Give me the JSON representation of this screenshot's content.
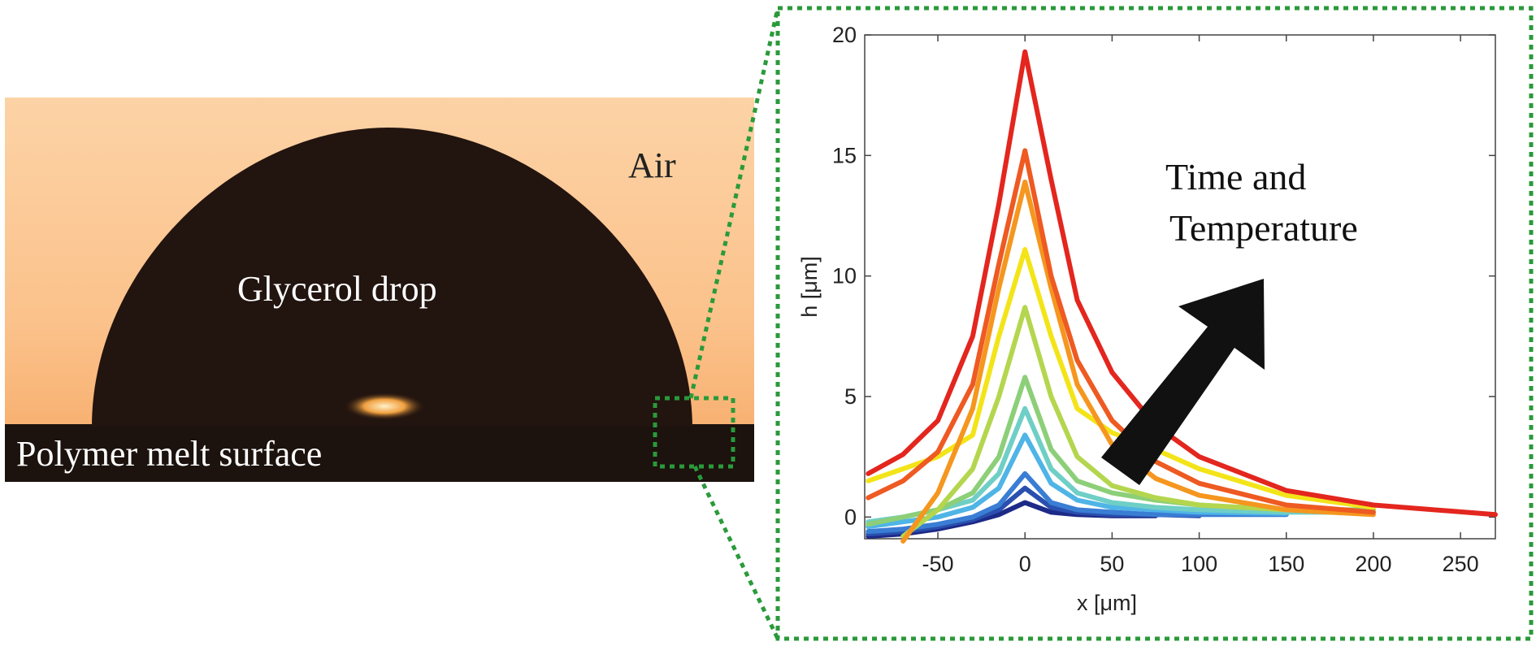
{
  "photo": {
    "labels": [
      "Air",
      "Glycerol drop",
      "Polymer melt surface"
    ]
  },
  "chart_data": {
    "type": "line",
    "annotations": [
      "Time and",
      "Temperature"
    ],
    "xlabel": "x [μm]",
    "ylabel": "h [μm]",
    "x": [
      -90,
      -70,
      -50,
      -30,
      -15,
      0,
      15,
      30,
      50,
      75,
      100,
      150,
      200,
      270
    ],
    "xlim": [
      -92,
      270
    ],
    "xticks": [
      -50,
      0,
      50,
      100,
      150,
      200,
      250
    ],
    "ylim": [
      -0.9,
      20
    ],
    "yticks": [
      0,
      5,
      10,
      15,
      20
    ],
    "series": [
      {
        "color": "#e3261e",
        "values": [
          1.8,
          2.6,
          4.0,
          7.5,
          13,
          19.3,
          14,
          9,
          6,
          3.8,
          2.5,
          1.1,
          0.5,
          0.1
        ]
      },
      {
        "color": "#ee5a22",
        "values": [
          0.8,
          1.5,
          2.7,
          5.5,
          10.5,
          15.2,
          10,
          6.5,
          4,
          2.3,
          1.4,
          0.5,
          0.2,
          null
        ]
      },
      {
        "color": "#f5961f",
        "values": [
          null,
          -1.0,
          1.0,
          4.5,
          9.5,
          13.9,
          9.5,
          5.5,
          3,
          1.6,
          0.9,
          0.3,
          0.1,
          null
        ]
      },
      {
        "color": "#f3e419",
        "values": [
          1.5,
          2.0,
          2.5,
          3.4,
          7.5,
          11.1,
          7.5,
          4.5,
          3.5,
          2.8,
          2.0,
          0.9,
          0.4,
          null
        ]
      },
      {
        "color": "#b4d64e",
        "values": [
          null,
          -0.8,
          0.3,
          2,
          5,
          8.7,
          5,
          2.5,
          1.3,
          0.8,
          0.5,
          0.3,
          0.2,
          null
        ]
      },
      {
        "color": "#8ccf78",
        "values": [
          -0.3,
          0,
          0.3,
          1,
          2.5,
          5.8,
          2.8,
          1.5,
          1,
          0.7,
          0.5,
          0.3,
          0.3,
          null
        ]
      },
      {
        "color": "#6fcfc6",
        "values": [
          -0.2,
          0,
          0.3,
          0.7,
          1.8,
          4.5,
          2,
          1,
          0.6,
          0.4,
          0.3,
          0.2,
          0.2,
          null
        ]
      },
      {
        "color": "#4fb4e6",
        "values": [
          -0.4,
          -0.2,
          0,
          0.4,
          1.2,
          3.4,
          1.4,
          0.7,
          0.4,
          0.3,
          0.2,
          0.15,
          null,
          null
        ]
      },
      {
        "color": "#3a7dd4",
        "values": [
          -0.6,
          -0.5,
          -0.3,
          0,
          0.5,
          1.8,
          0.6,
          0.3,
          0.2,
          0.1,
          0.1,
          0.1,
          null,
          null
        ]
      },
      {
        "color": "#2a4fae",
        "values": [
          -0.7,
          -0.6,
          -0.4,
          -0.1,
          0.3,
          1.2,
          0.4,
          0.2,
          0.1,
          0.1,
          0.05,
          null,
          null,
          null
        ]
      },
      {
        "color": "#1d2a88",
        "values": [
          -0.8,
          -0.7,
          -0.5,
          -0.2,
          0.1,
          0.6,
          0.2,
          0.1,
          0.05,
          0.05,
          null,
          null,
          null,
          null
        ]
      }
    ]
  }
}
